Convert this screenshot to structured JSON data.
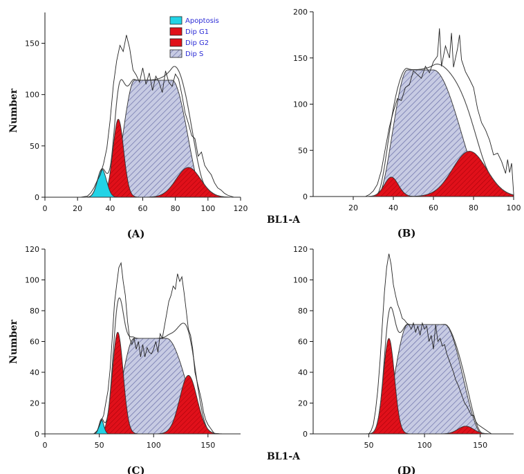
{
  "colors": {
    "apoptosis": "#22d3e6",
    "dip_g1": "#e0101a",
    "dip_g2": "#e0101a",
    "dip_s": "#c7cbe3",
    "raw_histogram": "#222222",
    "model_fit": "#444444"
  },
  "legend": [
    "Apoptosis",
    "Dip G1",
    "Dip G2",
    "Dip S"
  ],
  "shared_labels": {
    "ylabel": "Number",
    "xlabel": "BL1-A"
  },
  "chart_data": [
    {
      "type": "area",
      "panel": "(A)",
      "ylabel": "Number",
      "xlabel": "",
      "xlim": [
        0,
        120
      ],
      "ylim": [
        0,
        180
      ],
      "xticks": [
        0,
        20,
        40,
        60,
        80,
        100,
        120
      ],
      "yticks": [
        0,
        50,
        100,
        150
      ],
      "legend": [
        "Apoptosis",
        "Dip G1",
        "Dip G2",
        "Dip S"
      ],
      "series": [
        {
          "name": "Apoptosis",
          "model": "gauss",
          "mean": 35,
          "sd": 2.8,
          "peak": 27
        },
        {
          "name": "Dip G1",
          "model": "gauss",
          "mean": 45,
          "sd": 3.3,
          "peak": 76
        },
        {
          "name": "Dip S",
          "model": "trap",
          "start": 40,
          "flat_start": 55,
          "flat_end": 78,
          "end": 98,
          "peak": 114
        },
        {
          "name": "Dip G2",
          "model": "gauss",
          "mean": 88,
          "sd": 7.5,
          "peak": 29
        }
      ],
      "raw_histogram": [
        [
          22,
          0
        ],
        [
          26,
          1
        ],
        [
          28,
          4
        ],
        [
          30,
          9
        ],
        [
          32,
          16
        ],
        [
          34,
          22
        ],
        [
          36,
          33
        ],
        [
          38,
          48
        ],
        [
          40,
          75
        ],
        [
          42,
          110
        ],
        [
          44,
          133
        ],
        [
          46,
          148
        ],
        [
          48,
          142
        ],
        [
          50,
          158
        ],
        [
          52,
          145
        ],
        [
          54,
          124
        ],
        [
          56,
          119
        ],
        [
          58,
          112
        ],
        [
          60,
          126
        ],
        [
          62,
          110
        ],
        [
          64,
          121
        ],
        [
          66,
          104
        ],
        [
          68,
          118
        ],
        [
          70,
          112
        ],
        [
          72,
          102
        ],
        [
          74,
          123
        ],
        [
          76,
          112
        ],
        [
          78,
          108
        ],
        [
          80,
          120
        ],
        [
          82,
          115
        ],
        [
          84,
          100
        ],
        [
          86,
          82
        ],
        [
          88,
          72
        ],
        [
          90,
          60
        ],
        [
          92,
          57
        ],
        [
          94,
          40
        ],
        [
          96,
          44
        ],
        [
          98,
          31
        ],
        [
          100,
          26
        ],
        [
          102,
          22
        ],
        [
          104,
          14
        ],
        [
          106,
          9
        ],
        [
          108,
          7
        ],
        [
          110,
          4
        ],
        [
          112,
          2
        ],
        [
          114,
          1
        ],
        [
          116,
          0
        ]
      ]
    },
    {
      "type": "area",
      "panel": "(B)",
      "ylabel": "",
      "xlabel": "",
      "xlim": [
        0,
        100
      ],
      "ylim": [
        0,
        200
      ],
      "xticks": [
        20,
        40,
        60,
        80,
        100
      ],
      "yticks": [
        0,
        50,
        100,
        150,
        200
      ],
      "series": [
        {
          "name": "Dip G1",
          "model": "gauss",
          "mean": 39,
          "sd": 3.5,
          "peak": 21
        },
        {
          "name": "Dip S",
          "model": "trap",
          "start": 32,
          "flat_start": 47,
          "flat_end": 60,
          "end": 88,
          "peak": 137
        },
        {
          "name": "Dip G2",
          "model": "gauss",
          "mean": 78,
          "sd": 8.5,
          "peak": 49
        }
      ],
      "raw_histogram": [
        [
          26,
          0
        ],
        [
          28,
          2
        ],
        [
          30,
          6
        ],
        [
          32,
          13
        ],
        [
          34,
          28
        ],
        [
          36,
          52
        ],
        [
          38,
          75
        ],
        [
          40,
          92
        ],
        [
          42,
          106
        ],
        [
          44,
          104
        ],
        [
          46,
          118
        ],
        [
          48,
          121
        ],
        [
          50,
          136
        ],
        [
          52,
          132
        ],
        [
          54,
          128
        ],
        [
          56,
          141
        ],
        [
          58,
          134
        ],
        [
          60,
          146
        ],
        [
          62,
          152
        ],
        [
          63,
          182
        ],
        [
          64,
          141
        ],
        [
          66,
          163
        ],
        [
          68,
          150
        ],
        [
          69,
          177
        ],
        [
          70,
          140
        ],
        [
          72,
          160
        ],
        [
          73,
          175
        ],
        [
          74,
          148
        ],
        [
          76,
          135
        ],
        [
          78,
          127
        ],
        [
          80,
          118
        ],
        [
          82,
          95
        ],
        [
          84,
          80
        ],
        [
          86,
          72
        ],
        [
          88,
          61
        ],
        [
          90,
          45
        ],
        [
          92,
          47
        ],
        [
          94,
          38
        ],
        [
          96,
          25
        ],
        [
          97,
          40
        ],
        [
          98,
          26
        ],
        [
          99,
          36
        ],
        [
          100,
          3
        ]
      ]
    },
    {
      "type": "area",
      "panel": "(C)",
      "ylabel": "Number",
      "xlabel": "",
      "xlim": [
        0,
        180
      ],
      "ylim": [
        0,
        120
      ],
      "xticks": [
        0,
        50,
        100,
        150
      ],
      "yticks": [
        0,
        20,
        40,
        60,
        80,
        100,
        120
      ],
      "series": [
        {
          "name": "Apoptosis",
          "model": "gauss",
          "mean": 52,
          "sd": 2.2,
          "peak": 9
        },
        {
          "name": "Dip G1",
          "model": "gauss",
          "mean": 67,
          "sd": 5,
          "peak": 66
        },
        {
          "name": "Dip S",
          "model": "trap",
          "start": 58,
          "flat_start": 82,
          "flat_end": 112,
          "end": 150,
          "peak": 62
        },
        {
          "name": "Dip G2",
          "model": "gauss",
          "mean": 132,
          "sd": 8,
          "peak": 38
        }
      ],
      "raw_histogram": [
        [
          45,
          0
        ],
        [
          48,
          2
        ],
        [
          50,
          5
        ],
        [
          52,
          9
        ],
        [
          54,
          12
        ],
        [
          56,
          20
        ],
        [
          58,
          28
        ],
        [
          60,
          42
        ],
        [
          62,
          63
        ],
        [
          64,
          85
        ],
        [
          66,
          97
        ],
        [
          68,
          108
        ],
        [
          70,
          111
        ],
        [
          72,
          99
        ],
        [
          74,
          90
        ],
        [
          76,
          73
        ],
        [
          78,
          62
        ],
        [
          80,
          58
        ],
        [
          82,
          62
        ],
        [
          84,
          55
        ],
        [
          86,
          60
        ],
        [
          88,
          50
        ],
        [
          90,
          58
        ],
        [
          92,
          50
        ],
        [
          94,
          56
        ],
        [
          96,
          53
        ],
        [
          98,
          52
        ],
        [
          100,
          55
        ],
        [
          102,
          60
        ],
        [
          104,
          53
        ],
        [
          106,
          65
        ],
        [
          108,
          62
        ],
        [
          110,
          70
        ],
        [
          112,
          78
        ],
        [
          114,
          86
        ],
        [
          116,
          90
        ],
        [
          118,
          96
        ],
        [
          120,
          94
        ],
        [
          122,
          104
        ],
        [
          124,
          99
        ],
        [
          126,
          102
        ],
        [
          128,
          92
        ],
        [
          130,
          80
        ],
        [
          132,
          68
        ],
        [
          134,
          64
        ],
        [
          136,
          55
        ],
        [
          138,
          40
        ],
        [
          140,
          34
        ],
        [
          142,
          28
        ],
        [
          144,
          22
        ],
        [
          146,
          14
        ],
        [
          148,
          9
        ],
        [
          150,
          6
        ],
        [
          152,
          4
        ],
        [
          154,
          2
        ],
        [
          156,
          0
        ]
      ]
    },
    {
      "type": "area",
      "panel": "(D)",
      "ylabel": "",
      "xlabel": "",
      "xlim": [
        0,
        180
      ],
      "ylim": [
        0,
        120
      ],
      "xticks": [
        50,
        100,
        150
      ],
      "yticks": [
        0,
        20,
        40,
        60,
        80,
        100,
        120
      ],
      "series": [
        {
          "name": "Dip G1",
          "model": "gauss",
          "mean": 68,
          "sd": 5,
          "peak": 62
        },
        {
          "name": "Dip S",
          "model": "trap",
          "start": 60,
          "flat_start": 85,
          "flat_end": 118,
          "end": 152,
          "peak": 71
        },
        {
          "name": "Dip G2",
          "model": "gauss",
          "mean": 137,
          "sd": 7,
          "peak": 5
        }
      ],
      "raw_histogram": [
        [
          50,
          0
        ],
        [
          52,
          2
        ],
        [
          54,
          6
        ],
        [
          56,
          15
        ],
        [
          58,
          28
        ],
        [
          60,
          47
        ],
        [
          62,
          70
        ],
        [
          64,
          92
        ],
        [
          66,
          108
        ],
        [
          68,
          117
        ],
        [
          70,
          110
        ],
        [
          72,
          97
        ],
        [
          74,
          90
        ],
        [
          76,
          84
        ],
        [
          78,
          80
        ],
        [
          80,
          75
        ],
        [
          82,
          74
        ],
        [
          84,
          72
        ],
        [
          86,
          71
        ],
        [
          88,
          68
        ],
        [
          90,
          72
        ],
        [
          92,
          66
        ],
        [
          94,
          70
        ],
        [
          96,
          64
        ],
        [
          98,
          72
        ],
        [
          100,
          68
        ],
        [
          102,
          70
        ],
        [
          104,
          60
        ],
        [
          106,
          64
        ],
        [
          108,
          55
        ],
        [
          110,
          71
        ],
        [
          112,
          60
        ],
        [
          114,
          62
        ],
        [
          116,
          57
        ],
        [
          118,
          58
        ],
        [
          120,
          52
        ],
        [
          122,
          48
        ],
        [
          124,
          44
        ],
        [
          126,
          40
        ],
        [
          128,
          35
        ],
        [
          130,
          32
        ],
        [
          132,
          28
        ],
        [
          134,
          24
        ],
        [
          136,
          20
        ],
        [
          138,
          18
        ],
        [
          140,
          15
        ],
        [
          142,
          12
        ],
        [
          144,
          12
        ],
        [
          146,
          8
        ],
        [
          148,
          6
        ],
        [
          150,
          5
        ],
        [
          152,
          4
        ],
        [
          154,
          3
        ],
        [
          156,
          2
        ],
        [
          158,
          1
        ],
        [
          160,
          0
        ]
      ]
    }
  ]
}
